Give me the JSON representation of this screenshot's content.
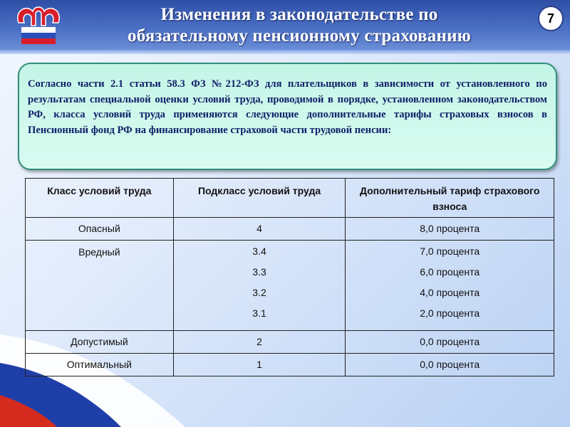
{
  "header": {
    "title_line1": "Изменения в законодательстве по",
    "title_line2": "обязательному пенсионному страхованию",
    "page_number": "7",
    "logo": "ПФР"
  },
  "info": {
    "text": "Согласно части 2.1 статьи 58.3 ФЗ №212-ФЗ для плательщиков в зависимости от установленного по результатам специальной оценки условий труда, проводимой в порядке, установленном законодательством РФ, класса условий труда применяются следующие дополнительные тарифы страховых взносов в Пенсионный фонд РФ на финансирование страховой части трудовой пенсии:"
  },
  "table": {
    "headers": [
      "Класс условий труда",
      "Подкласс условий труда",
      "Дополнительный тариф страхового взноса"
    ],
    "rows": [
      {
        "class": "Опасный",
        "subclasses": [
          "4"
        ],
        "tariffs": [
          "8,0 процента"
        ]
      },
      {
        "class": "Вредный",
        "subclasses": [
          "3.4",
          "3.3",
          "3.2",
          "3.1"
        ],
        "tariffs": [
          "7,0 процента",
          "6,0 процента",
          "4,0 процента",
          "2,0 процента"
        ]
      },
      {
        "class": "Допустимый",
        "subclasses": [
          "2"
        ],
        "tariffs": [
          "0,0 процента"
        ]
      },
      {
        "class": "Оптимальный",
        "subclasses": [
          "1"
        ],
        "tariffs": [
          "0,0 процента"
        ]
      }
    ]
  },
  "colors": {
    "header": "#3a5bb4",
    "box": "#c8f6e8",
    "box_text": "#10206a",
    "flag_red": "#d52b1e",
    "flag_blue": "#1f3fa8"
  }
}
